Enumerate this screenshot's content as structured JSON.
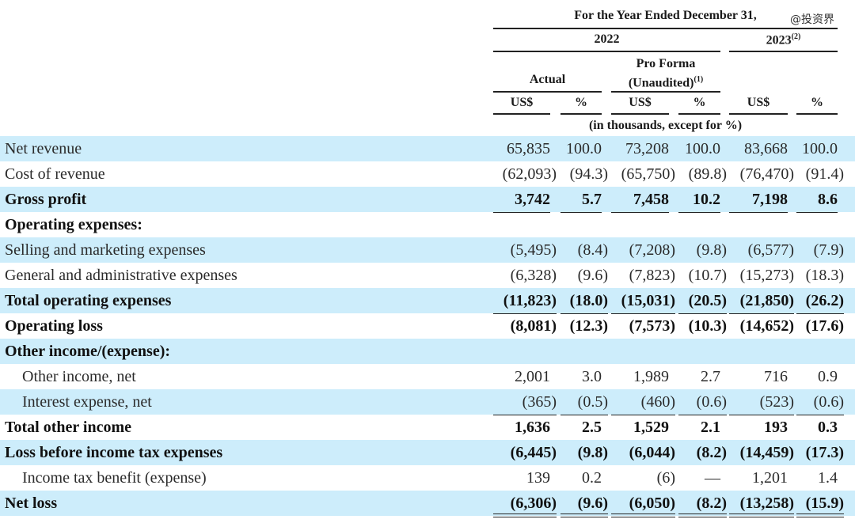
{
  "watermark": "@投资界",
  "header": {
    "period": "For the Year Ended December 31,",
    "year_2022": "2022",
    "year_2023": "2023",
    "year_2023_note": "(2)",
    "actual": "Actual",
    "pro_forma": "Pro Forma",
    "unaudited": "(Unaudited)",
    "unaudited_note": "(1)",
    "currency": "US$",
    "percent": "%",
    "units": "(in thousands, except for %)"
  },
  "band_color": "#cdedfb",
  "rows": [
    {
      "label": "Net revenue",
      "values": [
        "65,835",
        "100.0",
        "73,208",
        "100.0",
        "83,668",
        "100.0"
      ],
      "style": "band"
    },
    {
      "label": "Cost of revenue",
      "values": [
        "(62,093)",
        "(94.3)",
        "(65,750)",
        "(89.8)",
        "(76,470)",
        "(91.4)"
      ],
      "style": ""
    },
    {
      "label": "Gross profit",
      "values": [
        "3,742",
        "5.7",
        "7,458",
        "10.2",
        "7,198",
        "8.6"
      ],
      "style": "band bold ul"
    },
    {
      "label": "Operating expenses:",
      "values": [
        "",
        "",
        "",
        "",
        "",
        ""
      ],
      "style": "bold"
    },
    {
      "label": "Selling and marketing expenses",
      "values": [
        "(5,495)",
        "(8.4)",
        "(7,208)",
        "(9.8)",
        "(6,577)",
        "(7.9)"
      ],
      "style": "band"
    },
    {
      "label": "General and administrative expenses",
      "values": [
        "(6,328)",
        "(9.6)",
        "(7,823)",
        "(10.7)",
        "(15,273)",
        "(18.3)"
      ],
      "style": "ul"
    },
    {
      "label": "Total operating expenses",
      "values": [
        "(11,823)",
        "(18.0)",
        "(15,031)",
        "(20.5)",
        "(21,850)",
        "(26.2)"
      ],
      "style": "band bold ul"
    },
    {
      "label": "Operating loss",
      "values": [
        "(8,081)",
        "(12.3)",
        "(7,573)",
        "(10.3)",
        "(14,652)",
        "(17.6)"
      ],
      "style": "bold"
    },
    {
      "label": "Other income/(expense):",
      "values": [
        "",
        "",
        "",
        "",
        "",
        ""
      ],
      "style": "band bold"
    },
    {
      "label": "Other income, net",
      "values": [
        "2,001",
        "3.0",
        "1,989",
        "2.7",
        "716",
        "0.9"
      ],
      "style": "indent"
    },
    {
      "label": "Interest expense, net",
      "values": [
        "(365)",
        "(0.5)",
        "(460)",
        "(0.6)",
        "(523)",
        "(0.6)"
      ],
      "style": "band indent ul"
    },
    {
      "label": "Total other income",
      "values": [
        "1,636",
        "2.5",
        "1,529",
        "2.1",
        "193",
        "0.3"
      ],
      "style": "bold ul"
    },
    {
      "label": "Loss before income tax expenses",
      "values": [
        "(6,445)",
        "(9.8)",
        "(6,044)",
        "(8.2)",
        "(14,459)",
        "(17.3)"
      ],
      "style": "band bold"
    },
    {
      "label": "Income tax benefit (expense)",
      "values": [
        "139",
        "0.2",
        "(6)",
        "—",
        "1,201",
        "1.4"
      ],
      "style": "indent ul"
    },
    {
      "label": "Net loss",
      "values": [
        "(6,306)",
        "(9.6)",
        "(6,050)",
        "(8.2)",
        "(13,258)",
        "(15.9)"
      ],
      "style": "band bold dul"
    }
  ]
}
